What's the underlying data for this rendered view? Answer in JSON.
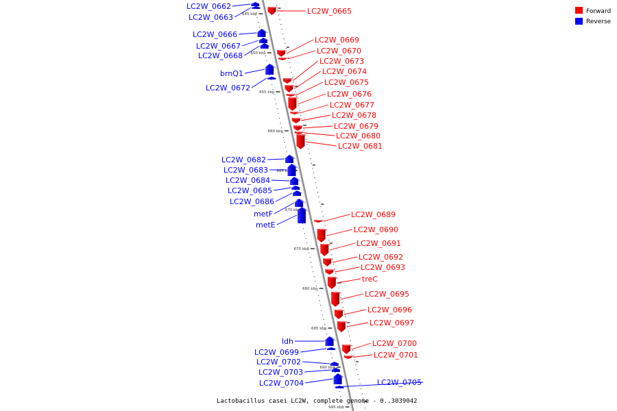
{
  "legend": {
    "forward_label": "Forward",
    "reverse_label": "Reverse",
    "forward_color": "#ff0000",
    "reverse_color": "#0000ff"
  },
  "caption": "Lactobacillus casei LC2W, complete genome - 0..3039042",
  "scale_ticks": [
    "645 kbp",
    "650 kbp",
    "655 kbp",
    "660 kbp",
    "665 kbp",
    "670 kbp",
    "675 kbp",
    "680 kbp",
    "685 kbp",
    "690 kbp",
    "695 kbp"
  ],
  "genes": [
    {
      "name": "LC2W_0662",
      "strand": "reverse"
    },
    {
      "name": "LC2W_0663",
      "strand": "reverse"
    },
    {
      "name": "LC2W_0665",
      "strand": "forward"
    },
    {
      "name": "LC2W_0666",
      "strand": "reverse"
    },
    {
      "name": "LC2W_0667",
      "strand": "reverse"
    },
    {
      "name": "LC2W_0668",
      "strand": "reverse"
    },
    {
      "name": "LC2W_0669",
      "strand": "forward"
    },
    {
      "name": "LC2W_0670",
      "strand": "forward"
    },
    {
      "name": "brnQ1",
      "strand": "reverse"
    },
    {
      "name": "LC2W_0673",
      "strand": "forward"
    },
    {
      "name": "LC2W_0674",
      "strand": "forward"
    },
    {
      "name": "LC2W_0672",
      "strand": "reverse"
    },
    {
      "name": "LC2W_0675",
      "strand": "forward"
    },
    {
      "name": "LC2W_0676",
      "strand": "forward"
    },
    {
      "name": "LC2W_0677",
      "strand": "forward"
    },
    {
      "name": "LC2W_0678",
      "strand": "forward"
    },
    {
      "name": "LC2W_0679",
      "strand": "forward"
    },
    {
      "name": "LC2W_0680",
      "strand": "forward"
    },
    {
      "name": "LC2W_0681",
      "strand": "forward"
    },
    {
      "name": "LC2W_0682",
      "strand": "reverse"
    },
    {
      "name": "LC2W_0683",
      "strand": "reverse"
    },
    {
      "name": "LC2W_0684",
      "strand": "reverse"
    },
    {
      "name": "LC2W_0685",
      "strand": "reverse"
    },
    {
      "name": "LC2W_0686",
      "strand": "reverse"
    },
    {
      "name": "metF",
      "strand": "reverse"
    },
    {
      "name": "metE",
      "strand": "reverse"
    },
    {
      "name": "LC2W_0689",
      "strand": "forward"
    },
    {
      "name": "LC2W_0690",
      "strand": "forward"
    },
    {
      "name": "LC2W_0691",
      "strand": "forward"
    },
    {
      "name": "LC2W_0692",
      "strand": "forward"
    },
    {
      "name": "LC2W_0693",
      "strand": "forward"
    },
    {
      "name": "treC",
      "strand": "forward"
    },
    {
      "name": "LC2W_0695",
      "strand": "forward"
    },
    {
      "name": "LC2W_0696",
      "strand": "forward"
    },
    {
      "name": "LC2W_0697",
      "strand": "forward"
    },
    {
      "name": "ldh",
      "strand": "reverse"
    },
    {
      "name": "LC2W_0699",
      "strand": "reverse"
    },
    {
      "name": "LC2W_0700",
      "strand": "forward"
    },
    {
      "name": "LC2W_0701",
      "strand": "forward"
    },
    {
      "name": "LC2W_0702",
      "strand": "reverse"
    },
    {
      "name": "LC2W_0703",
      "strand": "reverse"
    },
    {
      "name": "LC2W_0704",
      "strand": "reverse"
    },
    {
      "name": "LC2W_0705",
      "strand": "reverse"
    }
  ]
}
